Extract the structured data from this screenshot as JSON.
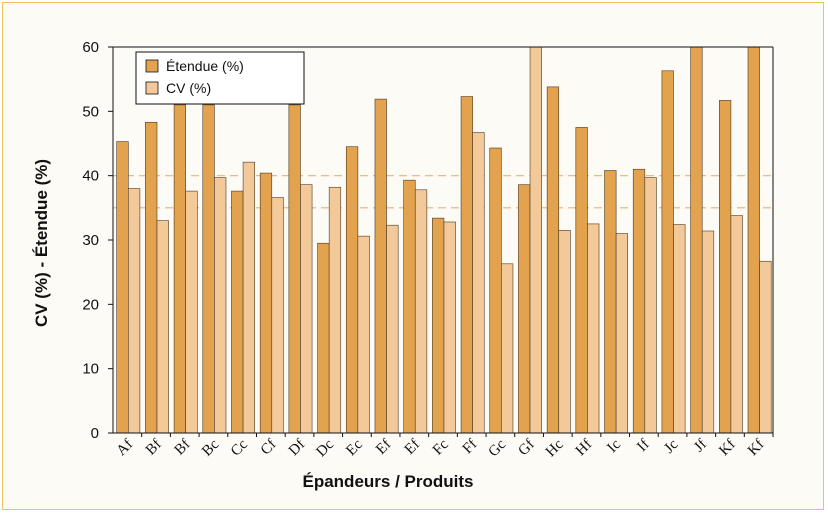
{
  "colors": {
    "frame_border": "#f2c25c",
    "bar_etendue": "#e3a24e",
    "bar_cv": "#f4c99a",
    "reference_line": "#f0b070"
  },
  "chart_data": {
    "type": "bar",
    "title": "",
    "xlabel": "Épandeurs / Produits",
    "ylabel": "CV (%) - Étendue (%)",
    "ylim": [
      0,
      60
    ],
    "yticks": [
      0,
      10,
      20,
      30,
      40,
      50,
      60
    ],
    "grid": false,
    "legend_position": "top-left",
    "categories": [
      "Af",
      "Bf",
      "Bf",
      "Bc",
      "Cc",
      "Cf",
      "Df",
      "Dc",
      "Ec",
      "Ef",
      "Ef",
      "Fc",
      "Ff",
      "Gc",
      "Gf",
      "Hc",
      "Hf",
      "Ic",
      "If",
      "Jc",
      "Jf",
      "Kf",
      "Kf"
    ],
    "series": [
      {
        "name": "Étendue (%)",
        "color": "#e3a24e",
        "values": [
          45.3,
          48.3,
          51.0,
          51.0,
          37.6,
          40.4,
          51.0,
          29.5,
          44.5,
          51.9,
          39.3,
          33.4,
          52.3,
          44.3,
          38.6,
          53.8,
          47.5,
          40.8,
          41.0,
          56.3,
          60.0,
          51.7,
          60.0
        ]
      },
      {
        "name": "CV (%)",
        "color": "#f4c99a",
        "values": [
          38.0,
          33.0,
          37.6,
          39.7,
          42.1,
          36.6,
          38.6,
          38.2,
          30.6,
          32.3,
          37.8,
          32.8,
          46.7,
          26.3,
          60.0,
          31.5,
          32.5,
          31.0,
          39.7,
          32.4,
          31.4,
          33.8,
          26.7
        ]
      }
    ],
    "reference_lines": [
      35,
      40
    ]
  }
}
